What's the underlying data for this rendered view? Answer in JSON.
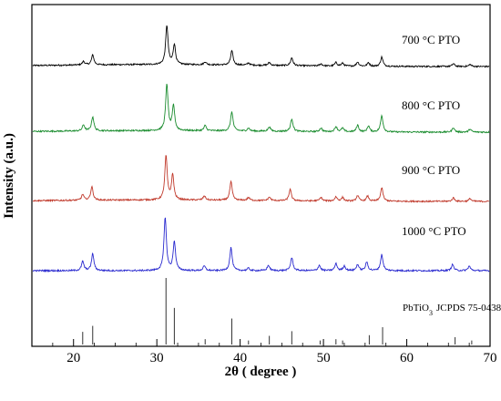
{
  "chart_data": {
    "type": "line",
    "xlabel": "2θ ( degree )",
    "ylabel": "Intensity (a.u.)",
    "xlim": [
      15,
      70
    ],
    "x_ticks": [
      20,
      30,
      40,
      50,
      60,
      70
    ],
    "y_ticks_shown": false,
    "grid": false,
    "legend": "none",
    "series": [
      {
        "name": "700 °C PTO",
        "color": "#000000",
        "baseline": 0.07,
        "peaks": [
          {
            "x": 21.2,
            "h": 0.05
          },
          {
            "x": 22.3,
            "h": 0.14
          },
          {
            "x": 31.2,
            "h": 0.55
          },
          {
            "x": 32.1,
            "h": 0.28
          },
          {
            "x": 35.8,
            "h": 0.04
          },
          {
            "x": 39.0,
            "h": 0.2
          },
          {
            "x": 41.0,
            "h": 0.03
          },
          {
            "x": 43.5,
            "h": 0.04
          },
          {
            "x": 46.2,
            "h": 0.11
          },
          {
            "x": 49.7,
            "h": 0.03
          },
          {
            "x": 51.5,
            "h": 0.05
          },
          {
            "x": 52.3,
            "h": 0.04
          },
          {
            "x": 54.1,
            "h": 0.06
          },
          {
            "x": 55.4,
            "h": 0.05
          },
          {
            "x": 57.0,
            "h": 0.13
          },
          {
            "x": 65.6,
            "h": 0.04
          },
          {
            "x": 67.6,
            "h": 0.03
          }
        ]
      },
      {
        "name": "800 °C PTO",
        "color": "#1a8c2e",
        "baseline": 0.05,
        "peaks": [
          {
            "x": 21.2,
            "h": 0.08
          },
          {
            "x": 22.3,
            "h": 0.19
          },
          {
            "x": 31.2,
            "h": 0.62
          },
          {
            "x": 32.0,
            "h": 0.33
          },
          {
            "x": 35.8,
            "h": 0.07
          },
          {
            "x": 39.0,
            "h": 0.26
          },
          {
            "x": 41.0,
            "h": 0.04
          },
          {
            "x": 43.5,
            "h": 0.06
          },
          {
            "x": 46.2,
            "h": 0.17
          },
          {
            "x": 49.7,
            "h": 0.05
          },
          {
            "x": 51.5,
            "h": 0.07
          },
          {
            "x": 52.3,
            "h": 0.05
          },
          {
            "x": 54.1,
            "h": 0.09
          },
          {
            "x": 55.4,
            "h": 0.08
          },
          {
            "x": 57.0,
            "h": 0.22
          },
          {
            "x": 65.6,
            "h": 0.06
          },
          {
            "x": 67.6,
            "h": 0.04
          }
        ]
      },
      {
        "name": "900 °C PTO",
        "color": "#c0392b",
        "baseline": 0.05,
        "peaks": [
          {
            "x": 21.1,
            "h": 0.08
          },
          {
            "x": 22.2,
            "h": 0.19
          },
          {
            "x": 31.1,
            "h": 0.62
          },
          {
            "x": 31.9,
            "h": 0.35
          },
          {
            "x": 35.7,
            "h": 0.06
          },
          {
            "x": 38.9,
            "h": 0.26
          },
          {
            "x": 41.0,
            "h": 0.04
          },
          {
            "x": 43.5,
            "h": 0.05
          },
          {
            "x": 46.0,
            "h": 0.16
          },
          {
            "x": 49.7,
            "h": 0.05
          },
          {
            "x": 51.5,
            "h": 0.06
          },
          {
            "x": 52.3,
            "h": 0.05
          },
          {
            "x": 54.1,
            "h": 0.08
          },
          {
            "x": 55.3,
            "h": 0.07
          },
          {
            "x": 57.0,
            "h": 0.19
          },
          {
            "x": 65.6,
            "h": 0.05
          },
          {
            "x": 67.6,
            "h": 0.04
          }
        ]
      },
      {
        "name": "1000 °C PTO",
        "color": "#2a2acf",
        "baseline": 0.0,
        "peaks": [
          {
            "x": 21.1,
            "h": 0.12
          },
          {
            "x": 22.3,
            "h": 0.22
          },
          {
            "x": 31.0,
            "h": 0.7
          },
          {
            "x": 32.1,
            "h": 0.38
          },
          {
            "x": 35.7,
            "h": 0.06
          },
          {
            "x": 38.9,
            "h": 0.3
          },
          {
            "x": 41.0,
            "h": 0.03
          },
          {
            "x": 43.4,
            "h": 0.07
          },
          {
            "x": 46.2,
            "h": 0.17
          },
          {
            "x": 49.5,
            "h": 0.07
          },
          {
            "x": 51.5,
            "h": 0.09
          },
          {
            "x": 52.5,
            "h": 0.06
          },
          {
            "x": 54.1,
            "h": 0.08
          },
          {
            "x": 55.2,
            "h": 0.11
          },
          {
            "x": 57.0,
            "h": 0.21
          },
          {
            "x": 65.5,
            "h": 0.08
          },
          {
            "x": 67.5,
            "h": 0.06
          }
        ]
      }
    ],
    "reference": {
      "label": "JCPDS 75-0438",
      "compound": {
        "base": "PbTiO",
        "sub": "3"
      },
      "x": [
        21.1,
        22.3,
        31.1,
        32.1,
        35.8,
        39.0,
        41.0,
        43.5,
        46.2,
        49.6,
        51.5,
        52.3,
        55.5,
        57.1,
        65.8,
        67.8
      ],
      "intensity": [
        0.19,
        0.28,
        1.0,
        0.55,
        0.08,
        0.39,
        0.06,
        0.13,
        0.2,
        0.06,
        0.08,
        0.06,
        0.14,
        0.26,
        0.11,
        0.06
      ]
    }
  }
}
